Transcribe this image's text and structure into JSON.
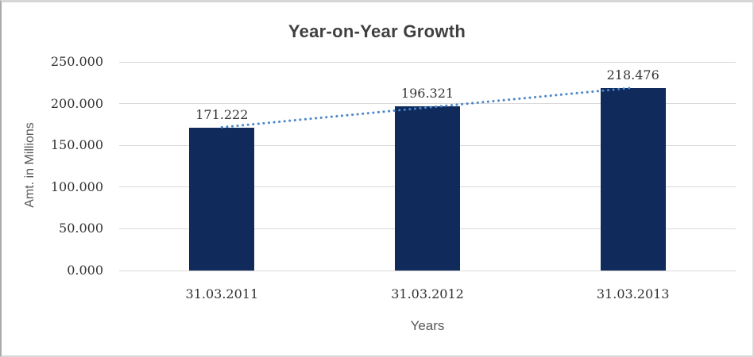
{
  "chart_data": {
    "type": "bar",
    "title": "Year-on-Year Growth",
    "categories": [
      "31.03.2011",
      "31.03.2012",
      "31.03.2013"
    ],
    "values": [
      171.222,
      196.321,
      218.476
    ],
    "value_labels": [
      "171.222",
      "196.321",
      "218.476"
    ],
    "xlabel": "Years",
    "ylabel": "Amt. in Millions",
    "ylim": [
      0,
      250
    ],
    "ytick_interval": 50,
    "ytick_labels": [
      "250.000",
      "200.000",
      "150.000",
      "100.000",
      "50.000",
      "0.000"
    ],
    "grid": true,
    "legend": "none",
    "bar_color": "#102a5c",
    "title_color": "#3f3f3f",
    "axis_title_color": "#595959",
    "tick_label_color": "#333333",
    "gridline_color": "#d9d9d9",
    "trendline": {
      "type": "linear",
      "style": "dotted",
      "color": "#4a87c9",
      "values": [
        171.713,
        195.34,
        218.967
      ]
    }
  }
}
